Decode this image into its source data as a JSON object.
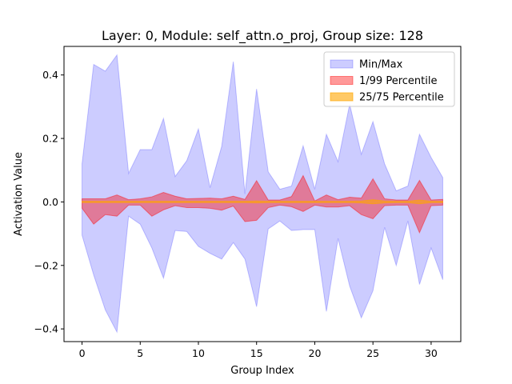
{
  "chart_data": {
    "type": "area",
    "title": "Layer: 0, Module: self_attn.o_proj,  Group size: 128",
    "xlabel": "Group Index",
    "ylabel": "Activation Value",
    "xlim": [
      -1.55,
      32.55
    ],
    "ylim": [
      -0.44,
      0.49
    ],
    "xticks": [
      0,
      5,
      10,
      15,
      20,
      25,
      30
    ],
    "yticks": [
      -0.4,
      -0.2,
      0.0,
      0.2,
      0.4
    ],
    "ytick_labels": [
      "−0.4",
      "−0.2",
      "0.0",
      "0.2",
      "0.4"
    ],
    "legend_position": "top-right",
    "x": [
      0,
      1,
      2,
      3,
      4,
      5,
      6,
      7,
      8,
      9,
      10,
      11,
      12,
      13,
      14,
      15,
      16,
      17,
      18,
      19,
      20,
      21,
      22,
      23,
      24,
      25,
      26,
      27,
      28,
      29,
      30,
      31
    ],
    "series": [
      {
        "name": "Min/Max",
        "color": "#0000ff",
        "fill_opacity": 0.2,
        "lower": [
          -0.105,
          -0.23,
          -0.34,
          -0.41,
          -0.045,
          -0.07,
          -0.145,
          -0.24,
          -0.09,
          -0.093,
          -0.14,
          -0.162,
          -0.18,
          -0.128,
          -0.18,
          -0.33,
          -0.085,
          -0.06,
          -0.09,
          -0.087,
          -0.087,
          -0.345,
          -0.115,
          -0.265,
          -0.365,
          -0.28,
          -0.08,
          -0.2,
          -0.06,
          -0.26,
          -0.145,
          -0.245
        ],
        "upper": [
          0.12,
          0.433,
          0.412,
          0.463,
          0.09,
          0.165,
          0.165,
          0.263,
          0.08,
          0.13,
          0.23,
          0.045,
          0.175,
          0.442,
          0.025,
          0.356,
          0.095,
          0.04,
          0.05,
          0.177,
          0.04,
          0.213,
          0.127,
          0.308,
          0.15,
          0.253,
          0.12,
          0.035,
          0.05,
          0.213,
          0.14,
          0.077
        ]
      },
      {
        "name": "1/99 Percentile",
        "color": "#ff0000",
        "fill_opacity": 0.4,
        "lower": [
          -0.02,
          -0.07,
          -0.04,
          -0.045,
          -0.01,
          -0.01,
          -0.045,
          -0.025,
          -0.012,
          -0.018,
          -0.018,
          -0.02,
          -0.026,
          -0.013,
          -0.062,
          -0.058,
          -0.018,
          -0.01,
          -0.015,
          -0.03,
          -0.01,
          -0.016,
          -0.016,
          -0.012,
          -0.04,
          -0.053,
          -0.012,
          -0.01,
          -0.01,
          -0.097,
          -0.012,
          -0.01
        ],
        "upper": [
          0.01,
          0.01,
          0.01,
          0.022,
          0.007,
          0.01,
          0.016,
          0.03,
          0.018,
          0.01,
          0.011,
          0.012,
          0.01,
          0.018,
          0.008,
          0.067,
          0.006,
          0.006,
          0.017,
          0.083,
          0.003,
          0.022,
          0.007,
          0.015,
          0.012,
          0.073,
          0.01,
          0.006,
          0.006,
          0.068,
          0.006,
          0.008
        ]
      },
      {
        "name": "25/75 Percentile",
        "color": "#ffa500",
        "fill_opacity": 0.6,
        "lower": [
          -0.002,
          -0.002,
          -0.002,
          -0.002,
          -0.002,
          -0.002,
          -0.002,
          -0.002,
          -0.002,
          -0.002,
          -0.002,
          -0.002,
          -0.002,
          -0.002,
          -0.002,
          -0.003,
          -0.002,
          -0.002,
          -0.002,
          -0.002,
          -0.002,
          -0.002,
          -0.002,
          -0.002,
          -0.003,
          -0.006,
          -0.003,
          -0.002,
          -0.002,
          -0.006,
          -0.002,
          -0.002
        ],
        "upper": [
          0.002,
          0.002,
          0.002,
          0.002,
          0.002,
          0.002,
          0.002,
          0.002,
          0.002,
          0.002,
          0.002,
          0.002,
          0.002,
          0.002,
          0.002,
          0.003,
          0.002,
          0.002,
          0.002,
          0.002,
          0.002,
          0.002,
          0.002,
          0.002,
          0.003,
          0.007,
          0.003,
          0.002,
          0.002,
          0.006,
          0.002,
          0.002
        ]
      }
    ]
  }
}
